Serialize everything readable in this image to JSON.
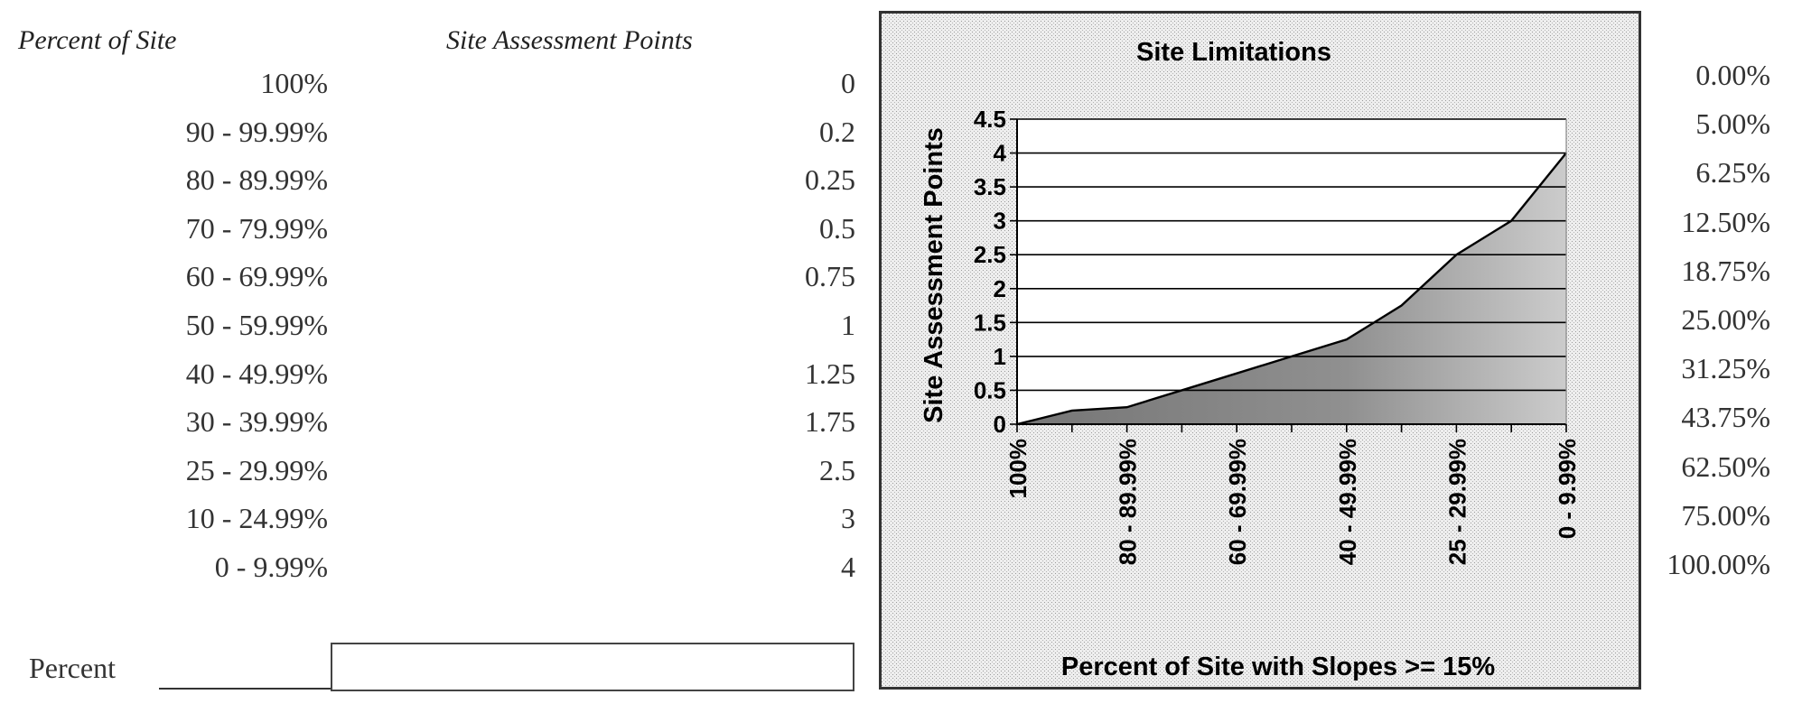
{
  "headers": {
    "percent_of_site": "Percent of Site",
    "site_assessment_points": "Site Assessment Points"
  },
  "rows": [
    {
      "percent": "100%",
      "points": "0"
    },
    {
      "percent": "90 - 99.99%",
      "points": "0.2"
    },
    {
      "percent": "80 - 89.99%",
      "points": "0.25"
    },
    {
      "percent": "70 - 79.99%",
      "points": "0.5"
    },
    {
      "percent": "60 - 69.99%",
      "points": "0.75"
    },
    {
      "percent": "50 - 59.99%",
      "points": "1"
    },
    {
      "percent": "40 - 49.99%",
      "points": "1.25"
    },
    {
      "percent": "30 - 39.99%",
      "points": "1.75"
    },
    {
      "percent": "25 - 29.99%",
      "points": "2.5"
    },
    {
      "percent": "10 - 24.99%",
      "points": "3"
    },
    {
      "percent": "0 - 9.99%",
      "points": "4"
    }
  ],
  "input": {
    "label": "Percent",
    "value": ""
  },
  "side_percentages": [
    "0.00%",
    "5.00%",
    "6.25%",
    "12.50%",
    "18.75%",
    "25.00%",
    "31.25%",
    "43.75%",
    "62.50%",
    "75.00%",
    "100.00%"
  ],
  "chart_data": {
    "type": "area",
    "title": "Site Limitations",
    "xlabel": "Percent of Site with Slopes >= 15%",
    "ylabel": "Site Assessment Points",
    "categories": [
      "100%",
      "90 - 99.99%",
      "80 - 89.99%",
      "70 - 79.99%",
      "60 - 69.99%",
      "50 - 59.99%",
      "40 - 49.99%",
      "30 - 39.99%",
      "25 - 29.99%",
      "10 - 24.99%",
      "0 - 9.99%"
    ],
    "x_tick_labels_shown": [
      "100%",
      "80 - 89.99%",
      "60 - 69.99%",
      "40 - 49.99%",
      "25 - 29.99%",
      "0 - 9.99%"
    ],
    "values": [
      0,
      0.2,
      0.25,
      0.5,
      0.75,
      1,
      1.25,
      1.75,
      2.5,
      3,
      4
    ],
    "y_ticks": [
      "0",
      "0.5",
      "1",
      "1.5",
      "2",
      "2.5",
      "3",
      "3.5",
      "4",
      "4.5"
    ],
    "ylim": [
      0,
      4.5
    ],
    "grid": true,
    "legend": "none"
  }
}
